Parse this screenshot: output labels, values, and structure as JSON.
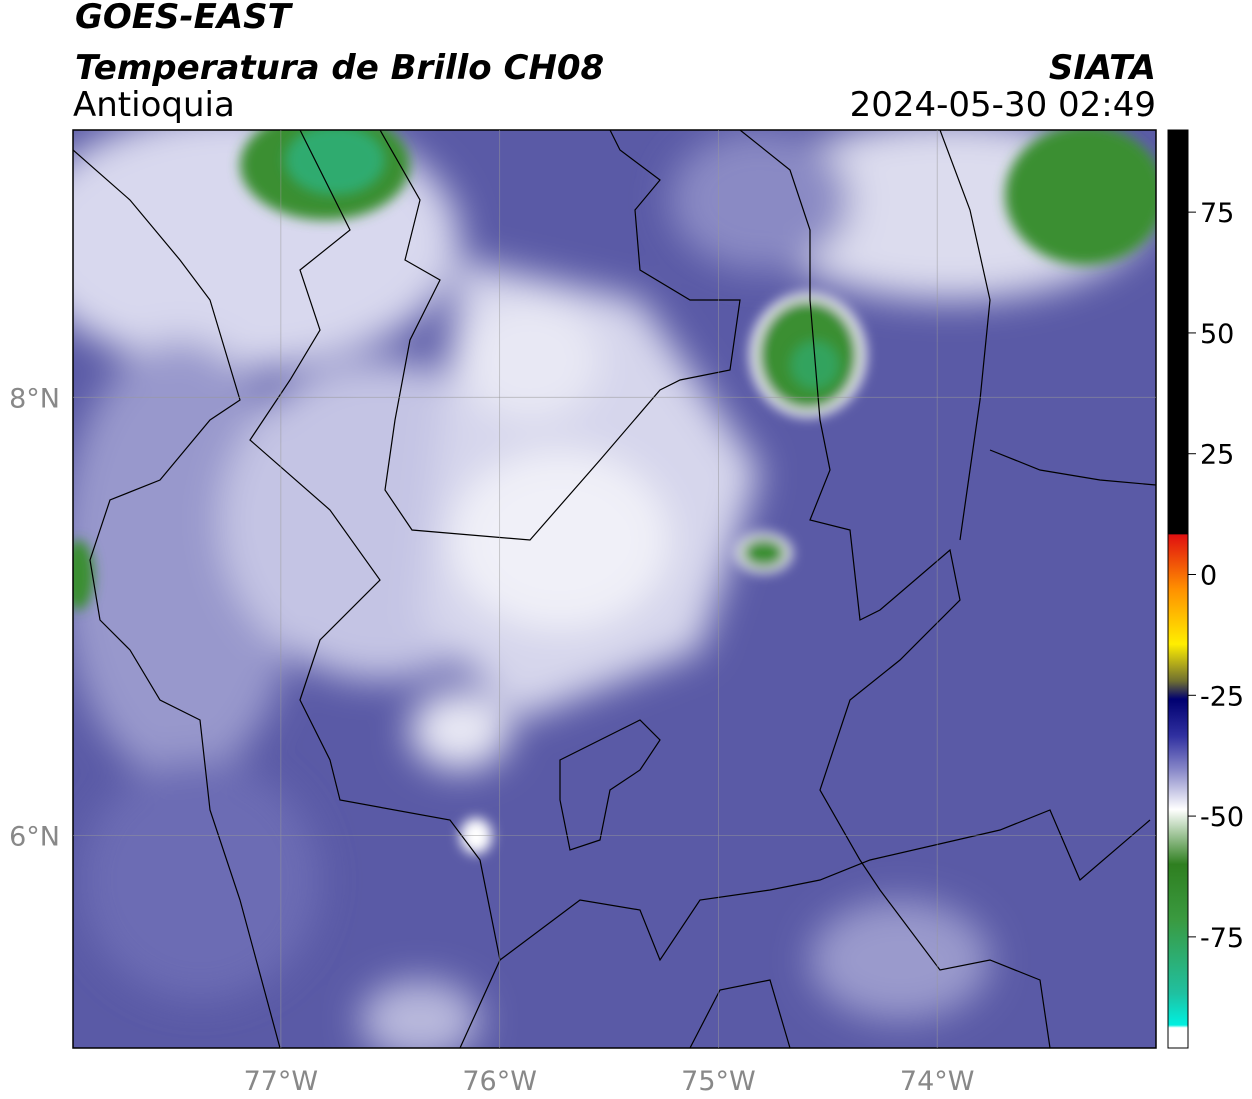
{
  "header": {
    "satellite": "GOES-EAST",
    "product": "Temperatura de Brillo CH08",
    "region": "Antioquia",
    "source": "SIATA",
    "datetime": "2024-05-30 02:49"
  },
  "chart_data": {
    "type": "map",
    "xlim": [
      -77.95,
      -73
    ],
    "ylim": [
      5.03,
      9.22
    ],
    "xticks": [
      {
        "value": -77,
        "label": "77°W"
      },
      {
        "value": -76,
        "label": "76°W"
      },
      {
        "value": -75,
        "label": "75°W"
      },
      {
        "value": -74,
        "label": "74°W"
      }
    ],
    "yticks": [
      {
        "value": 6,
        "label": "6°N"
      },
      {
        "value": 8,
        "label": "8°N"
      }
    ],
    "grid": true,
    "clim": [
      -98,
      92
    ],
    "cticks": [
      75,
      50,
      25,
      0,
      -25,
      -50,
      -75
    ]
  }
}
